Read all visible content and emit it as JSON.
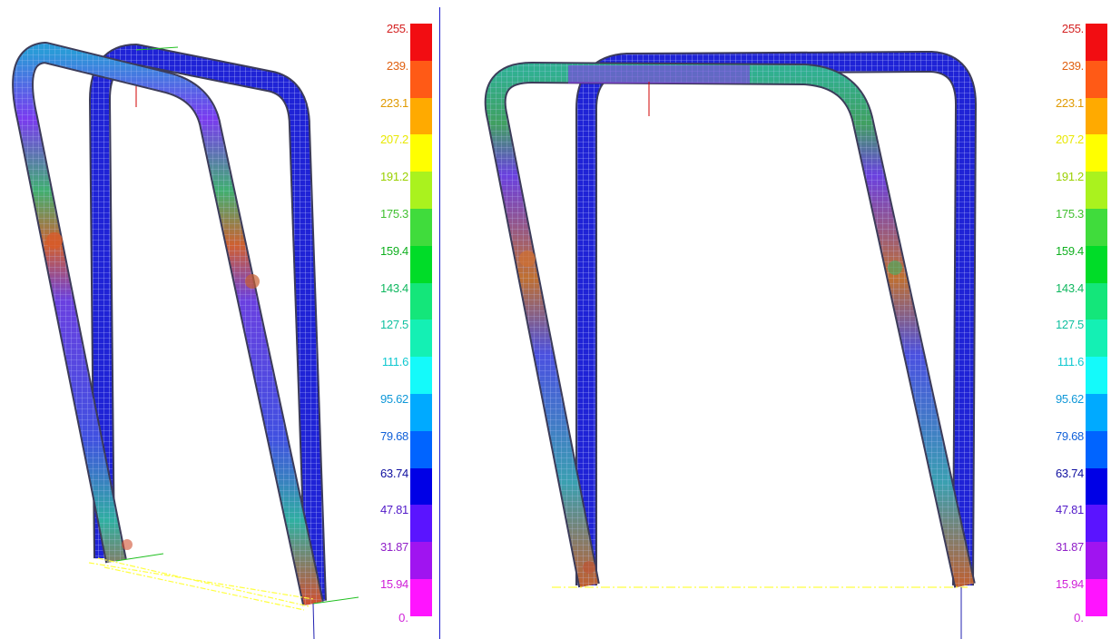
{
  "legend": {
    "levels": [
      {
        "label": "255.",
        "text_color": "#d42020",
        "fill": "#f20d12"
      },
      {
        "label": "239.",
        "text_color": "#e06010",
        "fill": "#ff5a16"
      },
      {
        "label": "223.1",
        "text_color": "#e09a00",
        "fill": "#ffaa00"
      },
      {
        "label": "207.2",
        "text_color": "#e8e800",
        "fill": "#ffff00"
      },
      {
        "label": "191.2",
        "text_color": "#9ad000",
        "fill": "#aaf21e"
      },
      {
        "label": "175.3",
        "text_color": "#40c030",
        "fill": "#40dc3c"
      },
      {
        "label": "159.4",
        "text_color": "#10b020",
        "fill": "#00dc28"
      },
      {
        "label": "143.4",
        "text_color": "#10b860",
        "fill": "#14e67a"
      },
      {
        "label": "127.5",
        "text_color": "#10c0a0",
        "fill": "#14f0b4"
      },
      {
        "label": "111.6",
        "text_color": "#10c8d0",
        "fill": "#14fafa"
      },
      {
        "label": "95.62",
        "text_color": "#1098d8",
        "fill": "#00aaff"
      },
      {
        "label": "79.68",
        "text_color": "#1060d8",
        "fill": "#0064ff"
      },
      {
        "label": "63.74",
        "text_color": "#1010a0",
        "fill": "#0000e6"
      },
      {
        "label": "47.81",
        "text_color": "#5018c8",
        "fill": "#5a14ff"
      },
      {
        "label": "31.87",
        "text_color": "#9020c8",
        "fill": "#a014f0"
      },
      {
        "label": "15.94",
        "text_color": "#d020d8",
        "fill": "#ff14ff"
      }
    ],
    "min_label": "0.",
    "min_color": "#d020d8"
  },
  "colors": {
    "tube_base": "#1f23d6",
    "tube_outline": "#3c3c5a",
    "mesh": "#c8d0ff",
    "ground_line": "#ffff40",
    "axis_blue": "#2020b0",
    "axis_green": "#20c020",
    "axis_red": "#d00000"
  }
}
